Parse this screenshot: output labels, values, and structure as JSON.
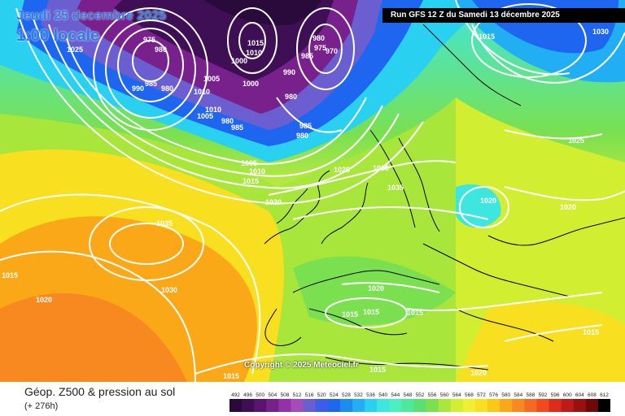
{
  "header": {
    "date_label": "Jeudi 25 decembre 2025",
    "time_label": "1:00 locale",
    "run_label": "Run GFS 12 Z du Samedi 13 décembre 2025"
  },
  "footer": {
    "title": "Géop. Z500 & pression au sol",
    "subtitle": "(+ 276h)",
    "copyright": "Copyright © 2025 Meteociel.fr"
  },
  "legend": {
    "values": [
      "492",
      "496",
      "500",
      "504",
      "508",
      "512",
      "516",
      "520",
      "524",
      "528",
      "532",
      "536",
      "540",
      "544",
      "548",
      "552",
      "556",
      "560",
      "564",
      "568",
      "572",
      "576",
      "580",
      "584",
      "588",
      "592",
      "596",
      "600",
      "604",
      "608",
      "612"
    ],
    "colors": [
      "#2a0a3a",
      "#3f0f55",
      "#5a1470",
      "#78208c",
      "#9630a8",
      "#a64cb8",
      "#6a5ed0",
      "#3a5ee8",
      "#1e66f0",
      "#1d8cf2",
      "#22aef2",
      "#2ad0f0",
      "#3ee6e0",
      "#4af0c0",
      "#4ee89a",
      "#58e070",
      "#7ae050",
      "#a8e63c",
      "#d2ee30",
      "#f0f030",
      "#f8e020",
      "#fbc818",
      "#faa818",
      "#f88820",
      "#f56a20",
      "#f04a1e",
      "#e02a1a",
      "#c01a16",
      "#981010",
      "#700808",
      "#000000"
    ]
  },
  "pressure_labels": [
    {
      "value": "1025"
    },
    {
      "value": "975"
    },
    {
      "value": "980"
    },
    {
      "value": "990"
    },
    {
      "value": "985"
    },
    {
      "value": "980"
    },
    {
      "value": "1010"
    },
    {
      "value": "1005"
    },
    {
      "value": "980"
    },
    {
      "value": "985"
    },
    {
      "value": "1015"
    },
    {
      "value": "1010"
    },
    {
      "value": "1000"
    },
    {
      "value": "1000"
    },
    {
      "value": "980"
    },
    {
      "value": "975"
    },
    {
      "value": "970"
    },
    {
      "value": "985"
    },
    {
      "value": "990"
    },
    {
      "value": "980"
    },
    {
      "value": "985"
    },
    {
      "value": "980"
    },
    {
      "value": "1005"
    },
    {
      "value": "1010"
    },
    {
      "value": "1015"
    },
    {
      "value": "1020"
    },
    {
      "value": "1025"
    },
    {
      "value": "1030"
    },
    {
      "value": "1035"
    },
    {
      "value": "1035"
    },
    {
      "value": "1030"
    },
    {
      "value": "1015"
    },
    {
      "value": "1020"
    },
    {
      "value": "1015"
    },
    {
      "value": "1030"
    },
    {
      "value": "1025"
    },
    {
      "value": "1020"
    },
    {
      "value": "1020"
    },
    {
      "value": "1020"
    },
    {
      "value": "1015"
    },
    {
      "value": "1015"
    },
    {
      "value": "1015"
    },
    {
      "value": "1015"
    },
    {
      "value": "1015"
    },
    {
      "value": "1020"
    },
    {
      "value": "1015"
    },
    {
      "value": "1005"
    },
    {
      "value": "1010"
    }
  ]
}
